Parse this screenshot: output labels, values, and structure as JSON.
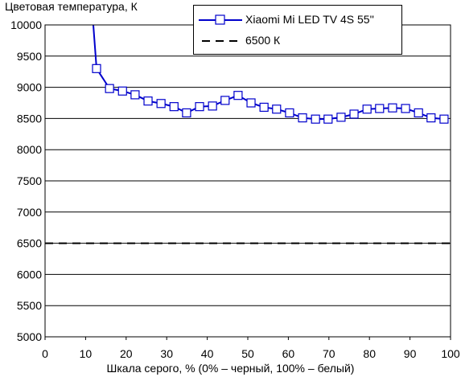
{
  "chart_data": {
    "type": "line",
    "title": "",
    "ylabel": "Цветовая температура, К",
    "xlabel": "Шкала серого, % (0% – черный, 100% – белый)",
    "xlim": [
      0,
      100
    ],
    "ylim": [
      5000,
      10000
    ],
    "xticks": [
      0,
      10,
      20,
      30,
      40,
      50,
      60,
      70,
      80,
      90,
      100
    ],
    "yticks": [
      5000,
      5500,
      6000,
      6500,
      7000,
      7500,
      8000,
      8500,
      9000,
      9500,
      10000
    ],
    "x_tick_labels": [
      "0",
      "10",
      "20",
      "30",
      "40",
      "50",
      "60",
      "70",
      "80",
      "90",
      "100"
    ],
    "y_tick_labels": [
      "5000",
      "5500",
      "6000",
      "6500",
      "7000",
      "7500",
      "8000",
      "8500",
      "9000",
      "9500",
      "10000"
    ],
    "grid": "horizontal",
    "legend_position": "top-right",
    "series": [
      {
        "name": "Xiaomi Mi LED TV 4S 55''",
        "color": "#0000cc",
        "marker": "square",
        "x": [
          12.7,
          15.9,
          19.1,
          22.2,
          25.4,
          28.6,
          31.8,
          34.9,
          38.1,
          41.3,
          44.4,
          47.6,
          50.8,
          54.0,
          57.1,
          60.3,
          63.5,
          66.7,
          69.8,
          73.0,
          76.2,
          79.4,
          82.5,
          85.7,
          88.9,
          92.1,
          95.2,
          98.4
        ],
        "values": [
          9300,
          8980,
          8940,
          8880,
          8780,
          8740,
          8690,
          8590,
          8690,
          8700,
          8790,
          8870,
          8750,
          8680,
          8650,
          8590,
          8510,
          8490,
          8490,
          8520,
          8570,
          8650,
          8660,
          8670,
          8660,
          8590,
          8510,
          8490
        ],
        "line_start": {
          "x": 11.9,
          "y": 10050
        }
      },
      {
        "name": "6500 К",
        "color": "#000000",
        "style": "dashed",
        "x": [
          0,
          100
        ],
        "values": [
          6500,
          6500
        ]
      }
    ]
  }
}
